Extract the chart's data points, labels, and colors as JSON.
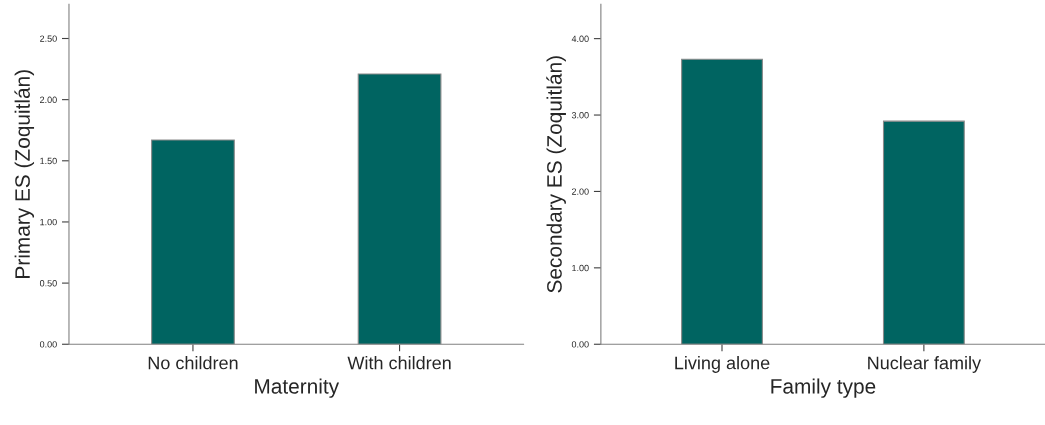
{
  "chart_data": [
    {
      "type": "bar",
      "categories": [
        "No children",
        "With children"
      ],
      "values": [
        1.67,
        2.21
      ],
      "color": "#006461",
      "xlabel": "Maternity",
      "ylabel": "Primary ES (Zoquitlán)",
      "ylim": [
        0,
        2.78
      ],
      "yticks": [
        {
          "value": 0,
          "label": "0.00"
        },
        {
          "value": 0.5,
          "label": "0.50"
        },
        {
          "value": 1,
          "label": "1.00"
        },
        {
          "value": 1.5,
          "label": "1.50"
        },
        {
          "value": 2,
          "label": "2.00"
        },
        {
          "value": 2.5,
          "label": "2.50"
        }
      ],
      "grid": false
    },
    {
      "type": "bar",
      "categories": [
        "Living alone",
        "Nuclear family"
      ],
      "values": [
        3.73,
        2.92
      ],
      "color": "#006461",
      "xlabel": "Family type",
      "ylabel": "Secondary ES (Zoquitlán)",
      "ylim": [
        0,
        4.45
      ],
      "yticks": [
        {
          "value": 0,
          "label": "0.00"
        },
        {
          "value": 1,
          "label": "1.00"
        },
        {
          "value": 2,
          "label": "2.00"
        },
        {
          "value": 3,
          "label": "3.00"
        },
        {
          "value": 4,
          "label": "4.00"
        }
      ],
      "grid": false
    }
  ]
}
